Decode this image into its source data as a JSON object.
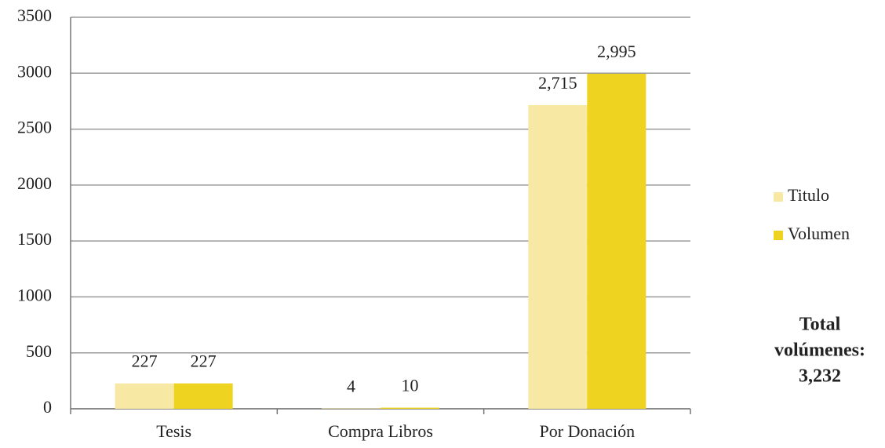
{
  "chart_data": {
    "type": "bar",
    "categories": [
      "Tesis",
      "Compra Libros",
      "Por Donación"
    ],
    "series": [
      {
        "name": "Titulo",
        "color": "#f7e9a3",
        "values": [
          227,
          4,
          2715
        ],
        "value_labels": [
          "227",
          "4",
          "2,715"
        ]
      },
      {
        "name": "Volumen",
        "color": "#eed321",
        "values": [
          227,
          10,
          2995
        ],
        "value_labels": [
          "227",
          "10",
          "2,995"
        ]
      }
    ],
    "ylim": [
      0,
      3500
    ],
    "yticks": [
      0,
      500,
      1000,
      1500,
      2000,
      2500,
      3000,
      3500
    ],
    "grid": true,
    "legend": "right",
    "annotation": [
      "Total",
      "volúmenes:",
      "3,232"
    ]
  }
}
